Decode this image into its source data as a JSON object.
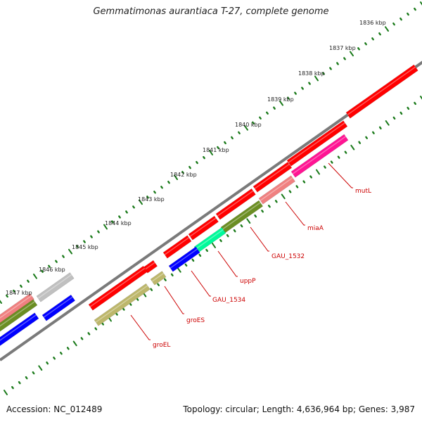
{
  "title": "Gemmatimonas aurantiaca T-27, complete genome",
  "footer": {
    "accession": "Accession: NC_012489",
    "summary": "Topology: circular; Length: 4,636,964 bp; Genes: 3,987"
  },
  "colors": {
    "backbone": "#7a7a7a",
    "tick_major": "#1a7a1a",
    "tick_minor": "#1a7a1a",
    "label": "#cc0000"
  },
  "kbp_labels": [
    "1836 kbp",
    "1837 kbp",
    "1838 kbp",
    "1839 kbp",
    "1840 kbp",
    "1841 kbp",
    "1842 kbp",
    "1843 kbp",
    "1844 kbp",
    "1845 kbp",
    "1846 kbp",
    "1847 kbp"
  ],
  "gene_labels": [
    "mutL",
    "miaA",
    "GAU_1532",
    "uppP",
    "GAU_1534",
    "groES",
    "groEL"
  ],
  "features": {
    "forward_color": "#ff0000",
    "reverse_colors": [
      "#ff1493",
      "#f08080",
      "#6b8e23",
      "#00fa9a",
      "#0000ff",
      "#bdb76b",
      "#bdb76b",
      "#c0c0c0",
      "#0000ff",
      "#f08080",
      "#6b8e23"
    ]
  }
}
